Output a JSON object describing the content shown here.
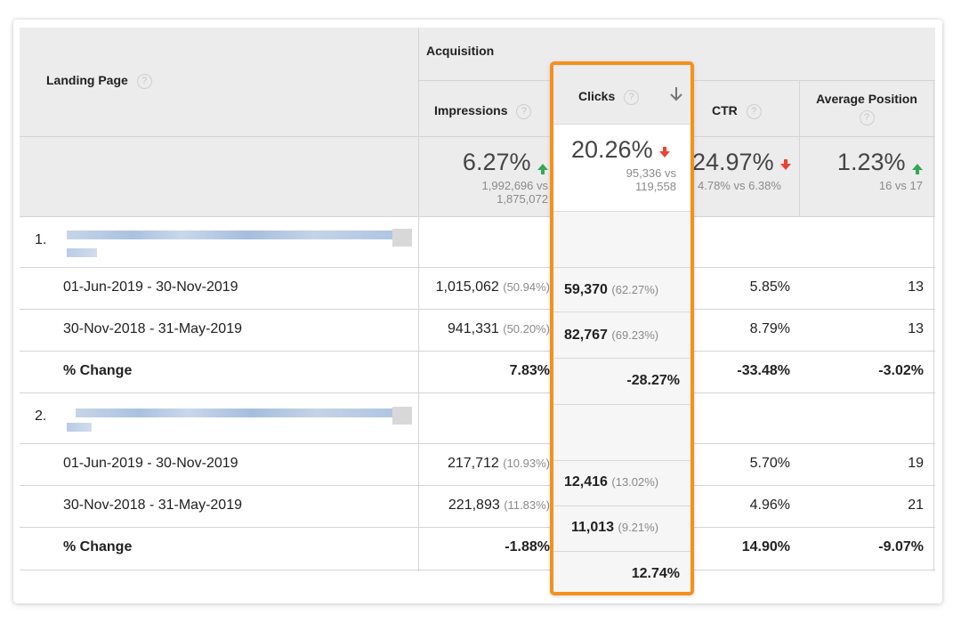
{
  "header": {
    "group_label": "Acquisition",
    "landing_page": "Landing Page",
    "help_glyph": "?",
    "columns": {
      "impressions": "Impressions",
      "clicks": "Clicks",
      "ctr": "CTR",
      "avg_position": "Average Position"
    }
  },
  "summary": {
    "impressions": {
      "value": "6.27%",
      "direction": "up",
      "sub_line1": "1,992,696 vs",
      "sub_line2": "1,875,072"
    },
    "clicks": {
      "value": "20.26%",
      "direction": "down",
      "sub_line1": "95,336 vs",
      "sub_line2": "119,558"
    },
    "ctr": {
      "value": "24.97%",
      "direction": "down",
      "sub": "4.78% vs 6.38%"
    },
    "avg_position": {
      "value": "1.23%",
      "direction": "up",
      "sub": "16 vs 17"
    }
  },
  "groups": [
    {
      "index": "1.",
      "rows": [
        {
          "label": "01-Jun-2019 - 30-Nov-2019",
          "impressions": "1,015,062",
          "impressions_pct": "(50.94%)",
          "clicks": "59,370",
          "clicks_pct": "(62.27%)",
          "ctr": "5.85%",
          "avg_position": "13"
        },
        {
          "label": "30-Nov-2018 - 31-May-2019",
          "impressions": "941,331",
          "impressions_pct": "(50.20%)",
          "clicks": "82,767",
          "clicks_pct": "(69.23%)",
          "ctr": "8.79%",
          "avg_position": "13"
        }
      ],
      "change": {
        "label": "% Change",
        "impressions": "7.83%",
        "clicks": "-28.27%",
        "ctr": "-33.48%",
        "avg_position": "-3.02%"
      }
    },
    {
      "index": "2.",
      "rows": [
        {
          "label": "01-Jun-2019 - 30-Nov-2019",
          "impressions": "217,712",
          "impressions_pct": "(10.93%)",
          "clicks": "12,416",
          "clicks_pct": "(13.02%)",
          "ctr": "5.70%",
          "avg_position": "19"
        },
        {
          "label": "30-Nov-2018 - 31-May-2019",
          "impressions": "221,893",
          "impressions_pct": "(11.83%)",
          "clicks": "11,013",
          "clicks_pct": "(9.21%)",
          "ctr": "4.96%",
          "avg_position": "21"
        }
      ],
      "change": {
        "label": "% Change",
        "impressions": "-1.88%",
        "clicks": "12.74%",
        "ctr": "14.90%",
        "avg_position": "-9.07%"
      }
    }
  ],
  "colors": {
    "accent_orange": "#f5901e",
    "up_green": "#34a853",
    "down_red": "#ea4335"
  }
}
